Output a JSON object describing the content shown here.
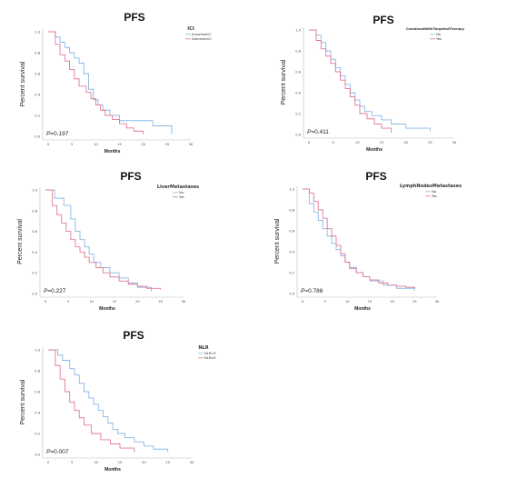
{
  "chart_data": [
    {
      "type": "line",
      "title": "PFS",
      "xlabel": "Months",
      "ylabel": "Percent survival",
      "xticks": [
        "0",
        "5",
        "10",
        "15",
        "20",
        "25",
        "30"
      ],
      "yticks": [
        "0.0",
        "0.2",
        "0.4",
        "0.6",
        "0.8",
        "1.0"
      ],
      "xlim": [
        0,
        30
      ],
      "ylim": [
        0,
        1
      ],
      "p_value": "0.197",
      "legend_title": "ICI",
      "series": [
        {
          "name": "ImportedICI",
          "color": "#8ab8e6",
          "x": [
            0,
            1.5,
            2.5,
            3.5,
            4.5,
            5.5,
            6.5,
            7.5,
            8.5,
            9.5,
            10.5,
            11.5,
            13,
            15,
            22,
            26
          ],
          "y": [
            1,
            0.95,
            0.9,
            0.85,
            0.8,
            0.75,
            0.7,
            0.6,
            0.45,
            0.35,
            0.3,
            0.25,
            0.2,
            0.15,
            0.1,
            0.02
          ]
        },
        {
          "name": "DomesticICI",
          "color": "#e07a98",
          "x": [
            0,
            1.5,
            2.5,
            3.5,
            4.5,
            5.5,
            6.5,
            8,
            9,
            10,
            11,
            12,
            13.5,
            15,
            16.5,
            18,
            20
          ],
          "y": [
            1,
            0.88,
            0.78,
            0.72,
            0.64,
            0.55,
            0.48,
            0.42,
            0.36,
            0.3,
            0.25,
            0.2,
            0.16,
            0.12,
            0.08,
            0.05,
            0.02
          ]
        }
      ]
    },
    {
      "type": "line",
      "title": "PFS",
      "xlabel": "Months",
      "ylabel": "Percent survival",
      "xticks": [
        "0",
        "5",
        "10",
        "15",
        "20",
        "25",
        "30"
      ],
      "yticks": [
        "0.0",
        "0.2",
        "0.4",
        "0.6",
        "0.8",
        "1.0"
      ],
      "xlim": [
        0,
        30
      ],
      "ylim": [
        0,
        1
      ],
      "p_value": "0.411",
      "legend_title": "CombinedWithTargetedTherapy",
      "series": [
        {
          "name": "No",
          "color": "#8ab8e6",
          "x": [
            0,
            1.5,
            2.5,
            3.5,
            4.5,
            5.5,
            6.5,
            7.5,
            8.5,
            9.5,
            10.5,
            11.5,
            13,
            15,
            17,
            20,
            25
          ],
          "y": [
            1,
            0.95,
            0.88,
            0.8,
            0.72,
            0.64,
            0.56,
            0.48,
            0.4,
            0.33,
            0.27,
            0.22,
            0.18,
            0.14,
            0.1,
            0.06,
            0.03
          ]
        },
        {
          "name": "Yes",
          "color": "#e07a98",
          "x": [
            0,
            1.5,
            2.5,
            3.5,
            4.5,
            5.5,
            6.5,
            7.5,
            8.5,
            9.5,
            10.5,
            12,
            13.5,
            15,
            17
          ],
          "y": [
            1,
            0.9,
            0.82,
            0.75,
            0.68,
            0.6,
            0.52,
            0.44,
            0.36,
            0.28,
            0.2,
            0.15,
            0.1,
            0.06,
            0.02
          ]
        }
      ]
    },
    {
      "type": "line",
      "title": "PFS",
      "xlabel": "Months",
      "ylabel": "Percent survival",
      "xticks": [
        "0",
        "5",
        "10",
        "15",
        "20",
        "25",
        "30"
      ],
      "yticks": [
        "0.0",
        "0.2",
        "0.4",
        "0.6",
        "0.8",
        "1.0"
      ],
      "xlim": [
        0,
        30
      ],
      "ylim": [
        0,
        1
      ],
      "p_value": "0.227",
      "legend_title": "LiverMetastases",
      "series": [
        {
          "name": "No",
          "color": "#8ab8e6",
          "x": [
            0,
            2,
            4,
            5.5,
            6.5,
            7.5,
            8.5,
            9.5,
            10.5,
            12,
            14,
            16,
            18,
            20,
            23
          ],
          "y": [
            1,
            0.92,
            0.85,
            0.72,
            0.6,
            0.52,
            0.45,
            0.38,
            0.3,
            0.25,
            0.2,
            0.15,
            0.1,
            0.06,
            0.02
          ]
        },
        {
          "name": "Yes",
          "color": "#e07a98",
          "x": [
            0,
            1.5,
            2.5,
            3.5,
            4.5,
            5.5,
            6.5,
            7.5,
            8.5,
            9.5,
            11,
            12.5,
            14,
            16,
            18,
            20,
            22,
            25
          ],
          "y": [
            1,
            0.85,
            0.76,
            0.68,
            0.6,
            0.52,
            0.45,
            0.4,
            0.35,
            0.3,
            0.25,
            0.2,
            0.16,
            0.12,
            0.09,
            0.07,
            0.05,
            0.04
          ]
        }
      ]
    },
    {
      "type": "line",
      "title": "PFS",
      "xlabel": "Months",
      "ylabel": "Percent survival",
      "xticks": [
        "0",
        "5",
        "10",
        "15",
        "20",
        "25",
        "30"
      ],
      "yticks": [
        "0.0",
        "0.2",
        "0.4",
        "0.6",
        "0.8",
        "1.0"
      ],
      "xlim": [
        0,
        30
      ],
      "ylim": [
        0,
        1
      ],
      "p_value": "0.786",
      "legend_title": "LymphNodesMetastases",
      "series": [
        {
          "name": "No",
          "color": "#8ab8e6",
          "x": [
            0,
            1.5,
            2.5,
            3.5,
            4.5,
            5.5,
            6.5,
            7.5,
            8.5,
            9.5,
            10.5,
            12,
            13.5,
            15,
            18,
            21,
            25
          ],
          "y": [
            1,
            0.86,
            0.78,
            0.7,
            0.62,
            0.55,
            0.48,
            0.42,
            0.36,
            0.3,
            0.25,
            0.2,
            0.16,
            0.12,
            0.08,
            0.05,
            0.03
          ]
        },
        {
          "name": "Yes",
          "color": "#e07a98",
          "x": [
            0,
            1.5,
            2.5,
            3.5,
            4.5,
            5.5,
            6.5,
            7.5,
            8.5,
            9.5,
            10.5,
            12,
            13.5,
            15,
            17,
            19,
            21,
            23,
            25
          ],
          "y": [
            1,
            0.96,
            0.88,
            0.8,
            0.72,
            0.62,
            0.55,
            0.46,
            0.38,
            0.3,
            0.24,
            0.2,
            0.16,
            0.13,
            0.1,
            0.08,
            0.07,
            0.06,
            0.05
          ]
        }
      ]
    },
    {
      "type": "line",
      "title": "PFS",
      "xlabel": "Months",
      "ylabel": "Percent survival",
      "xticks": [
        "0",
        "5",
        "10",
        "15",
        "20",
        "25",
        "30"
      ],
      "yticks": [
        "0.0",
        "0.2",
        "0.4",
        "0.6",
        "0.8",
        "1.0"
      ],
      "xlim": [
        0,
        30
      ],
      "ylim": [
        0,
        1
      ],
      "p_value": "0.007",
      "legend_title": "NLR",
      "series": [
        {
          "name": "NLR<3",
          "color": "#8ab8e6",
          "x": [
            0,
            2,
            3,
            4.5,
            5.5,
            6.5,
            7.5,
            8.5,
            9.5,
            10.5,
            11.5,
            12.5,
            13.5,
            14.5,
            16,
            18,
            20,
            22,
            25
          ],
          "y": [
            1,
            0.95,
            0.9,
            0.82,
            0.76,
            0.68,
            0.6,
            0.54,
            0.48,
            0.42,
            0.36,
            0.3,
            0.24,
            0.2,
            0.16,
            0.12,
            0.08,
            0.05,
            0.02
          ]
        },
        {
          "name": "NLR≥3",
          "color": "#e07a98",
          "x": [
            0,
            1.5,
            2.5,
            3.5,
            4.5,
            5.5,
            6.5,
            7.5,
            9,
            11,
            13,
            15,
            18
          ],
          "y": [
            1,
            0.85,
            0.72,
            0.6,
            0.5,
            0.42,
            0.35,
            0.28,
            0.2,
            0.14,
            0.1,
            0.06,
            0.02
          ]
        }
      ]
    }
  ]
}
